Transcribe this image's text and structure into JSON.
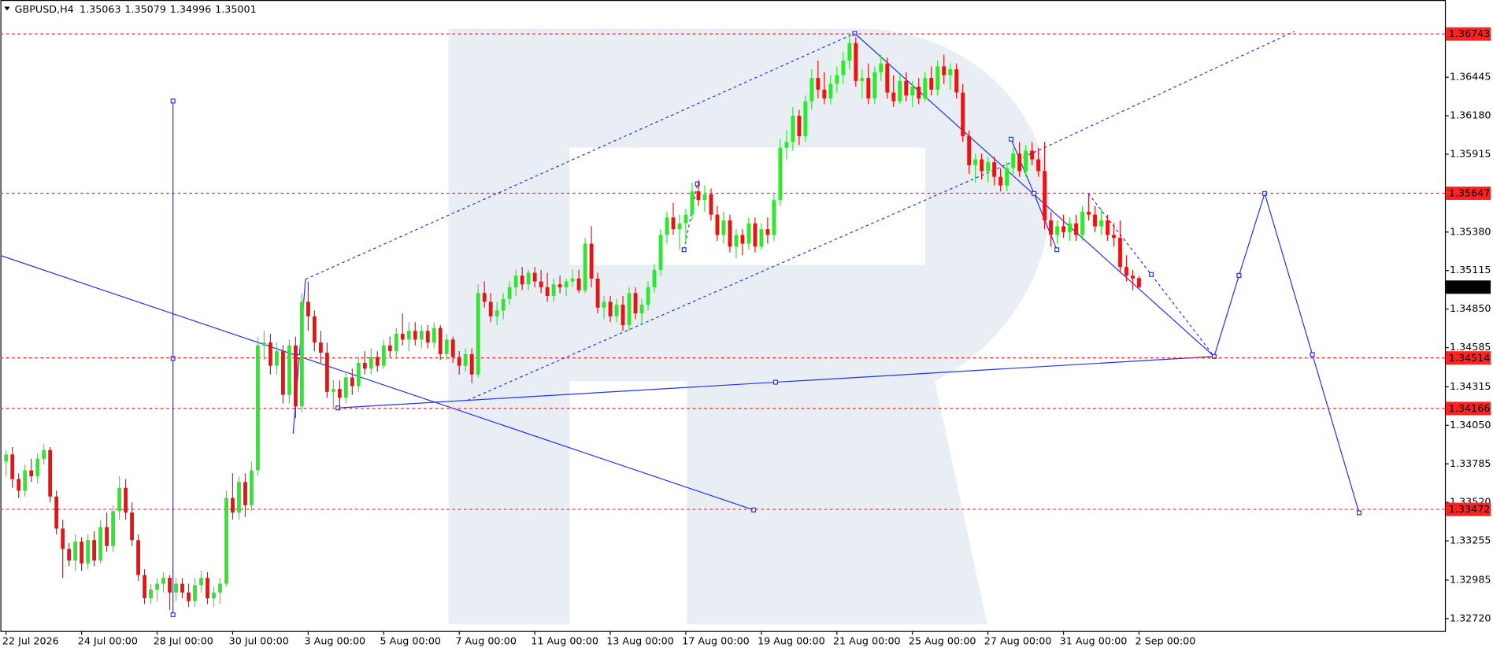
{
  "chart_data": {
    "type": "candlestick",
    "symbol": "GBPUSD,H4",
    "up_color": "#2ee82e",
    "down_color": "#ee1111",
    "level_color": "#ff2020",
    "grid": false,
    "xlim": [
      -0.9,
      228.6
    ],
    "ylim": [
      1.32635,
      1.36957
    ],
    "xticks": [
      {
        "value": 0,
        "label": "22 Jul 2026"
      },
      {
        "value": 12,
        "label": "24 Jul 00:00"
      },
      {
        "value": 24,
        "label": "28 Jul 00:00"
      },
      {
        "value": 36,
        "label": "30 Jul 00:00"
      },
      {
        "value": 48,
        "label": "3 Aug 00:00"
      },
      {
        "value": 60,
        "label": "5 Aug 00:00"
      },
      {
        "value": 72,
        "label": "7 Aug 00:00"
      },
      {
        "value": 84,
        "label": "11 Aug 00:00"
      },
      {
        "value": 96,
        "label": "13 Aug 00:00"
      },
      {
        "value": 108,
        "label": "17 Aug 00:00"
      },
      {
        "value": 120,
        "label": "19 Aug 00:00"
      },
      {
        "value": 132,
        "label": "21 Aug 00:00"
      },
      {
        "value": 144,
        "label": "25 Aug 00:00"
      },
      {
        "value": 156,
        "label": "27 Aug 00:00"
      },
      {
        "value": 168,
        "label": "31 Aug 00:00"
      },
      {
        "value": 180,
        "label": "2 Sep 00:00"
      }
    ],
    "yticks": [
      1.36445,
      {
        "value": 1.3618,
        "label": "1.36180"
      },
      1.35915,
      {
        "value": 1.3538,
        "label": "1.35380"
      },
      1.35115,
      {
        "value": 1.3485,
        "label": "1.34850"
      },
      1.34585,
      1.34315,
      {
        "value": 1.3405,
        "label": "1.34050"
      },
      1.33785,
      {
        "value": 1.3352,
        "label": "1.33520"
      },
      1.33255,
      1.32985,
      {
        "value": 1.3272,
        "label": "1.32720"
      }
    ],
    "levels": [
      1.36743,
      1.35647,
      1.34514,
      1.34166,
      1.33472
    ],
    "candles": [
      [
        1.338,
        1.3388,
        1.337,
        1.3385
      ],
      [
        1.3385,
        1.339,
        1.3362,
        1.3368
      ],
      [
        1.3368,
        1.3372,
        1.3355,
        1.336
      ],
      [
        1.336,
        1.3378,
        1.3356,
        1.3374
      ],
      [
        1.3374,
        1.3382,
        1.3366,
        1.337
      ],
      [
        1.337,
        1.3386,
        1.3365,
        1.3382
      ],
      [
        1.3382,
        1.3392,
        1.3378,
        1.3388
      ],
      [
        1.3388,
        1.339,
        1.3352,
        1.3356
      ],
      [
        1.3356,
        1.336,
        1.333,
        1.3334
      ],
      [
        1.3334,
        1.334,
        1.33,
        1.332
      ],
      [
        1.332,
        1.3324,
        1.3308,
        1.3312
      ],
      [
        1.3312,
        1.333,
        1.3305,
        1.3325
      ],
      [
        1.3325,
        1.3328,
        1.3305,
        1.331
      ],
      [
        1.331,
        1.333,
        1.3306,
        1.3326
      ],
      [
        1.3326,
        1.3332,
        1.3308,
        1.3312
      ],
      [
        1.3312,
        1.334,
        1.331,
        1.3335
      ],
      [
        1.3335,
        1.3345,
        1.3318,
        1.3322
      ],
      [
        1.3322,
        1.335,
        1.3318,
        1.3346
      ],
      [
        1.3346,
        1.337,
        1.334,
        1.3362
      ],
      [
        1.3362,
        1.3368,
        1.334,
        1.3345
      ],
      [
        1.3345,
        1.3352,
        1.3322,
        1.3326
      ],
      [
        1.3326,
        1.333,
        1.3298,
        1.3302
      ],
      [
        1.3302,
        1.3306,
        1.3282,
        1.3286
      ],
      [
        1.3286,
        1.3296,
        1.3282,
        1.3292
      ],
      [
        1.3292,
        1.33,
        1.3284,
        1.3296
      ],
      [
        1.3296,
        1.3304,
        1.329,
        1.33
      ],
      [
        1.33,
        1.3302,
        1.3278,
        1.329
      ],
      [
        1.329,
        1.33,
        1.3284,
        1.3296
      ],
      [
        1.3296,
        1.33,
        1.3286,
        1.329
      ],
      [
        1.329,
        1.3296,
        1.328,
        1.3284
      ],
      [
        1.3284,
        1.33,
        1.328,
        1.3295
      ],
      [
        1.3295,
        1.3305,
        1.329,
        1.33
      ],
      [
        1.33,
        1.3304,
        1.3282,
        1.3286
      ],
      [
        1.3286,
        1.3294,
        1.328,
        1.329
      ],
      [
        1.329,
        1.33,
        1.3282,
        1.3296
      ],
      [
        1.3296,
        1.336,
        1.3294,
        1.3355
      ],
      [
        1.3355,
        1.3372,
        1.334,
        1.3345
      ],
      [
        1.3345,
        1.337,
        1.334,
        1.3366
      ],
      [
        1.3366,
        1.3372,
        1.3342,
        1.335
      ],
      [
        1.335,
        1.338,
        1.3346,
        1.3374
      ],
      [
        1.3374,
        1.3466,
        1.337,
        1.346
      ],
      [
        1.346,
        1.347,
        1.345,
        1.3462
      ],
      [
        1.3462,
        1.3468,
        1.344,
        1.3446
      ],
      [
        1.3446,
        1.3462,
        1.344,
        1.3456
      ],
      [
        1.3456,
        1.346,
        1.342,
        1.3426
      ],
      [
        1.3426,
        1.3464,
        1.342,
        1.346
      ],
      [
        1.346,
        1.3466,
        1.341,
        1.3418
      ],
      [
        1.3418,
        1.3496,
        1.3414,
        1.349
      ],
      [
        1.349,
        1.3504,
        1.347,
        1.348
      ],
      [
        1.348,
        1.3484,
        1.3456,
        1.3462
      ],
      [
        1.3462,
        1.347,
        1.3448,
        1.3455
      ],
      [
        1.3455,
        1.3462,
        1.3424,
        1.3428
      ],
      [
        1.3428,
        1.3436,
        1.3416,
        1.343
      ],
      [
        1.343,
        1.3436,
        1.3418,
        1.3424
      ],
      [
        1.3424,
        1.3442,
        1.342,
        1.3438
      ],
      [
        1.3438,
        1.3444,
        1.3426,
        1.3432
      ],
      [
        1.3432,
        1.3452,
        1.3428,
        1.3448
      ],
      [
        1.3448,
        1.3456,
        1.344,
        1.3444
      ],
      [
        1.3444,
        1.3458,
        1.344,
        1.3452
      ],
      [
        1.3452,
        1.3456,
        1.3442,
        1.3446
      ],
      [
        1.3446,
        1.3464,
        1.3444,
        1.346
      ],
      [
        1.346,
        1.3466,
        1.3452,
        1.3456
      ],
      [
        1.3456,
        1.3472,
        1.3452,
        1.3468
      ],
      [
        1.3468,
        1.3482,
        1.346,
        1.3464
      ],
      [
        1.3464,
        1.3476,
        1.3456,
        1.347
      ],
      [
        1.347,
        1.3476,
        1.346,
        1.3464
      ],
      [
        1.3464,
        1.3474,
        1.3458,
        1.347
      ],
      [
        1.347,
        1.3474,
        1.3458,
        1.3462
      ],
      [
        1.3462,
        1.3476,
        1.3458,
        1.3472
      ],
      [
        1.3472,
        1.3474,
        1.345,
        1.3454
      ],
      [
        1.3454,
        1.3468,
        1.345,
        1.3464
      ],
      [
        1.3464,
        1.3466,
        1.3448,
        1.3452
      ],
      [
        1.3452,
        1.3456,
        1.344,
        1.3446
      ],
      [
        1.3446,
        1.3458,
        1.3442,
        1.3454
      ],
      [
        1.3454,
        1.3458,
        1.3434,
        1.344
      ],
      [
        1.344,
        1.3502,
        1.3438,
        1.3496
      ],
      [
        1.3496,
        1.3504,
        1.3486,
        1.349
      ],
      [
        1.349,
        1.3496,
        1.3476,
        1.348
      ],
      [
        1.348,
        1.349,
        1.3474,
        1.3484
      ],
      [
        1.3484,
        1.3496,
        1.3478,
        1.3492
      ],
      [
        1.3492,
        1.3504,
        1.3488,
        1.35
      ],
      [
        1.35,
        1.3512,
        1.3494,
        1.3508
      ],
      [
        1.3508,
        1.3514,
        1.3498,
        1.3502
      ],
      [
        1.3502,
        1.3512,
        1.3498,
        1.351
      ],
      [
        1.351,
        1.3514,
        1.35,
        1.3504
      ],
      [
        1.3504,
        1.3512,
        1.3496,
        1.35
      ],
      [
        1.35,
        1.351,
        1.349,
        1.3494
      ],
      [
        1.3494,
        1.3506,
        1.349,
        1.3502
      ],
      [
        1.3502,
        1.3508,
        1.3496,
        1.35
      ],
      [
        1.35,
        1.3506,
        1.3494,
        1.3504
      ],
      [
        1.3504,
        1.3512,
        1.35,
        1.3506
      ],
      [
        1.3506,
        1.3512,
        1.3496,
        1.3498
      ],
      [
        1.3498,
        1.3534,
        1.3496,
        1.353
      ],
      [
        1.353,
        1.3542,
        1.35,
        1.3506
      ],
      [
        1.3506,
        1.351,
        1.3482,
        1.3486
      ],
      [
        1.3486,
        1.3494,
        1.3478,
        1.349
      ],
      [
        1.349,
        1.3494,
        1.3476,
        1.348
      ],
      [
        1.348,
        1.3492,
        1.3476,
        1.3488
      ],
      [
        1.3488,
        1.3494,
        1.347,
        1.3474
      ],
      [
        1.3474,
        1.35,
        1.347,
        1.3496
      ],
      [
        1.3496,
        1.35,
        1.3478,
        1.3482
      ],
      [
        1.3482,
        1.3492,
        1.3474,
        1.3488
      ],
      [
        1.3488,
        1.3504,
        1.3484,
        1.35
      ],
      [
        1.35,
        1.3516,
        1.3496,
        1.3512
      ],
      [
        1.3512,
        1.354,
        1.3508,
        1.3536
      ],
      [
        1.3536,
        1.3552,
        1.353,
        1.3548
      ],
      [
        1.3548,
        1.3558,
        1.3536,
        1.354
      ],
      [
        1.354,
        1.355,
        1.3526,
        1.3544
      ],
      [
        1.3544,
        1.3554,
        1.353,
        1.355
      ],
      [
        1.355,
        1.3572,
        1.3546,
        1.3566
      ],
      [
        1.3566,
        1.3574,
        1.3556,
        1.356
      ],
      [
        1.356,
        1.357,
        1.3552,
        1.3564
      ],
      [
        1.3564,
        1.3568,
        1.3546,
        1.355
      ],
      [
        1.355,
        1.3556,
        1.3532,
        1.3536
      ],
      [
        1.3536,
        1.3552,
        1.353,
        1.3546
      ],
      [
        1.3546,
        1.355,
        1.3524,
        1.3528
      ],
      [
        1.3528,
        1.354,
        1.352,
        1.3536
      ],
      [
        1.3536,
        1.354,
        1.3522,
        1.353
      ],
      [
        1.353,
        1.3548,
        1.3526,
        1.3544
      ],
      [
        1.3544,
        1.3548,
        1.3524,
        1.3528
      ],
      [
        1.3528,
        1.3544,
        1.3526,
        1.354
      ],
      [
        1.354,
        1.3548,
        1.353,
        1.3536
      ],
      [
        1.3536,
        1.3564,
        1.3532,
        1.356
      ],
      [
        1.356,
        1.3602,
        1.3556,
        1.3596
      ],
      [
        1.3596,
        1.3608,
        1.3588,
        1.36
      ],
      [
        1.36,
        1.3624,
        1.3594,
        1.3618
      ],
      [
        1.3618,
        1.3622,
        1.3598,
        1.3604
      ],
      [
        1.3604,
        1.3632,
        1.36,
        1.3628
      ],
      [
        1.3628,
        1.365,
        1.3622,
        1.3644
      ],
      [
        1.3644,
        1.3656,
        1.363,
        1.3636
      ],
      [
        1.3636,
        1.3648,
        1.3626,
        1.363
      ],
      [
        1.363,
        1.3646,
        1.3626,
        1.364
      ],
      [
        1.364,
        1.3652,
        1.3634,
        1.3646
      ],
      [
        1.3646,
        1.3662,
        1.364,
        1.3656
      ],
      [
        1.3656,
        1.3674,
        1.365,
        1.3668
      ],
      [
        1.3668,
        1.3672,
        1.3638,
        1.3642
      ],
      [
        1.3642,
        1.365,
        1.363,
        1.3644
      ],
      [
        1.3644,
        1.3654,
        1.3626,
        1.363
      ],
      [
        1.363,
        1.3652,
        1.3626,
        1.3648
      ],
      [
        1.3648,
        1.366,
        1.3642,
        1.3654
      ],
      [
        1.3654,
        1.3658,
        1.363,
        1.3634
      ],
      [
        1.3634,
        1.3646,
        1.3624,
        1.3628
      ],
      [
        1.3628,
        1.3646,
        1.3626,
        1.3642
      ],
      [
        1.3642,
        1.3648,
        1.3628,
        1.3632
      ],
      [
        1.3632,
        1.3642,
        1.3624,
        1.3638
      ],
      [
        1.3638,
        1.3644,
        1.3626,
        1.363
      ],
      [
        1.363,
        1.3648,
        1.3628,
        1.3644
      ],
      [
        1.3644,
        1.3652,
        1.3632,
        1.3636
      ],
      [
        1.3636,
        1.3656,
        1.3632,
        1.3652
      ],
      [
        1.3652,
        1.366,
        1.364,
        1.3646
      ],
      [
        1.3646,
        1.3654,
        1.3636,
        1.365
      ],
      [
        1.365,
        1.3654,
        1.363,
        1.3634
      ],
      [
        1.3634,
        1.364,
        1.36,
        1.3604
      ],
      [
        1.3604,
        1.3608,
        1.3578,
        1.3584
      ],
      [
        1.3584,
        1.3592,
        1.3572,
        1.3588
      ],
      [
        1.3588,
        1.3592,
        1.3574,
        1.358
      ],
      [
        1.358,
        1.359,
        1.3572,
        1.3586
      ],
      [
        1.3586,
        1.359,
        1.357,
        1.3576
      ],
      [
        1.3576,
        1.3582,
        1.3566,
        1.357
      ],
      [
        1.357,
        1.3586,
        1.3566,
        1.3582
      ],
      [
        1.3582,
        1.3596,
        1.3578,
        1.3592
      ],
      [
        1.3592,
        1.36,
        1.3576,
        1.358
      ],
      [
        1.358,
        1.3598,
        1.3576,
        1.3594
      ],
      [
        1.3594,
        1.36,
        1.3584,
        1.3588
      ],
      [
        1.3588,
        1.3596,
        1.3576,
        1.358
      ],
      [
        1.358,
        1.36,
        1.354,
        1.3546
      ],
      [
        1.3546,
        1.3552,
        1.3528,
        1.3536
      ],
      [
        1.3536,
        1.3546,
        1.353,
        1.3542
      ],
      [
        1.3542,
        1.355,
        1.3534,
        1.3538
      ],
      [
        1.3538,
        1.3548,
        1.3532,
        1.3544
      ],
      [
        1.3544,
        1.355,
        1.3532,
        1.3536
      ],
      [
        1.3536,
        1.3556,
        1.3532,
        1.3552
      ],
      [
        1.3552,
        1.3564,
        1.3546,
        1.355
      ],
      [
        1.355,
        1.3556,
        1.3538,
        1.3542
      ],
      [
        1.3542,
        1.3554,
        1.3536,
        1.3546
      ],
      [
        1.3546,
        1.355,
        1.3532,
        1.3536
      ],
      [
        1.3536,
        1.3544,
        1.3528,
        1.3534
      ],
      [
        1.3534,
        1.3546,
        1.351,
        1.3514
      ],
      [
        1.3514,
        1.3522,
        1.3504,
        1.3508
      ],
      [
        1.3508,
        1.3512,
        1.3498,
        1.3506
      ],
      [
        1.35063,
        1.35079,
        1.34996,
        1.35001
      ]
    ]
  }
}
